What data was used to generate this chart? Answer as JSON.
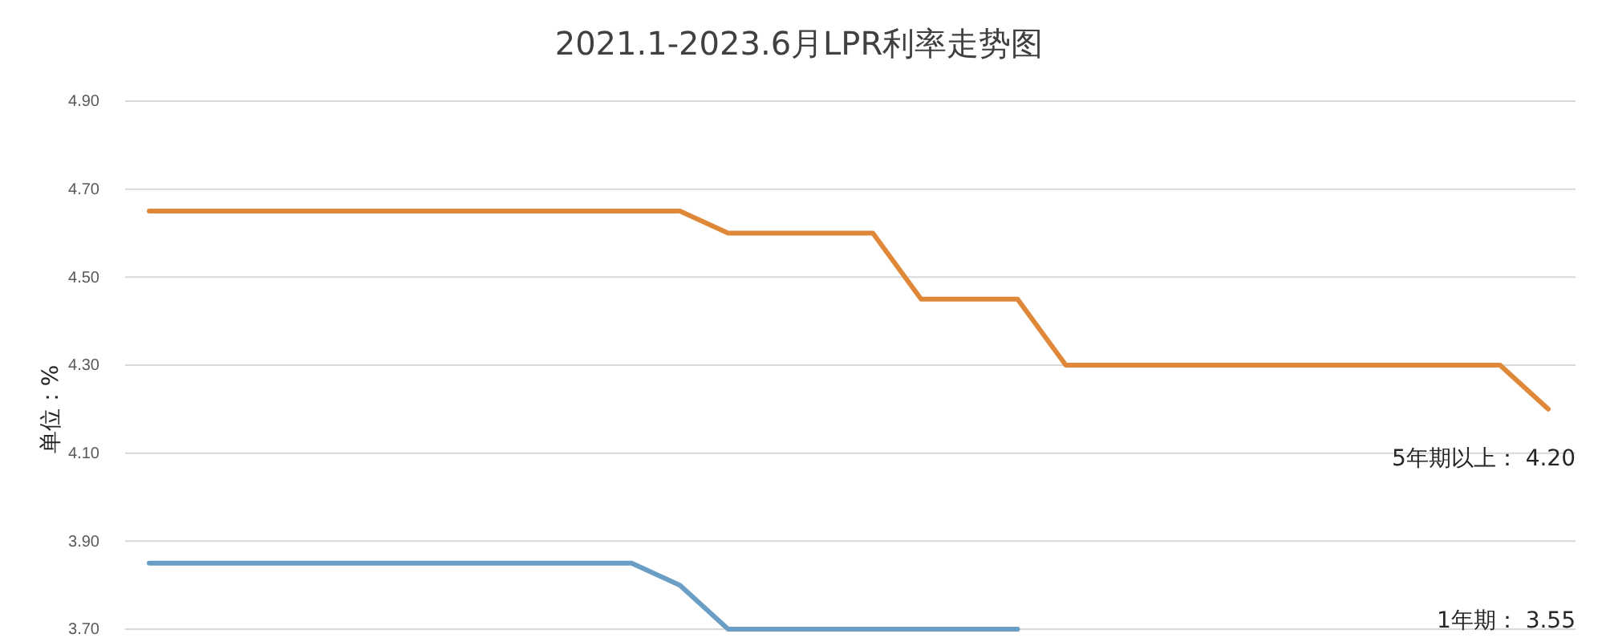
{
  "chart_data": {
    "type": "line",
    "title": "2021.1-2023.6月LPR利率走势图",
    "ylabel": "单位：%",
    "categories": [
      null,
      null,
      null,
      null,
      null,
      null,
      null,
      null,
      null,
      null,
      null,
      null,
      null,
      null,
      null,
      null,
      null,
      null,
      null,
      null,
      null,
      null,
      null,
      null,
      null,
      null,
      null,
      null,
      null,
      null
    ],
    "series": [
      {
        "color": "#e0883a",
        "values": [
          4.65,
          4.65,
          4.65,
          4.65,
          4.65,
          4.65,
          4.65,
          4.65,
          4.65,
          4.65,
          4.65,
          4.65,
          4.6,
          4.6,
          4.6,
          4.6,
          4.45,
          4.45,
          4.45,
          4.3,
          4.3,
          4.3,
          4.3,
          4.3,
          4.3,
          4.3,
          4.3,
          4.3,
          4.3,
          4.2
        ]
      },
      {
        "color": "#6a9ec4",
        "values": [
          3.85,
          3.85,
          3.85,
          3.85,
          3.85,
          3.85,
          3.85,
          3.85,
          3.85,
          3.85,
          3.85,
          3.8,
          3.7,
          3.7,
          3.7,
          3.7,
          3.7,
          3.7,
          3.7,
          null,
          null,
          null,
          null,
          null,
          null,
          null,
          null,
          null,
          null,
          null
        ]
      }
    ],
    "ylim": [
      3.7,
      4.9
    ],
    "yticks": [
      {
        "value": 3.7,
        "label": "3.70"
      },
      {
        "value": 3.9,
        "label": "3.90"
      },
      {
        "value": 4.1,
        "label": "4.10"
      },
      {
        "value": 4.3,
        "label": "4.30"
      },
      {
        "value": 4.5,
        "label": "4.50"
      },
      {
        "value": 4.7,
        "label": "4.70"
      },
      {
        "value": 4.9,
        "label": "4.90"
      }
    ],
    "grid": "y",
    "tick_labels": "y",
    "annotations": [
      "5年期以上： 4.20",
      "1年期： 3.55"
    ]
  }
}
